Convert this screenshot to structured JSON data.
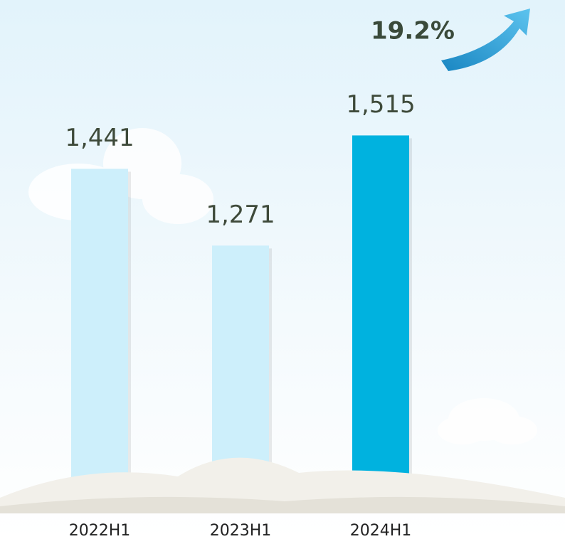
{
  "chart_data": {
    "type": "bar",
    "categories": [
      "2022H1",
      "2023H1",
      "2024H1"
    ],
    "values": [
      1441,
      1271,
      1515
    ],
    "value_labels": [
      "1,441",
      "1,271",
      "1,515"
    ],
    "colors": [
      "#cdeffb",
      "#cdeffb",
      "#00b2df"
    ],
    "ylim": [
      736,
      1815
    ],
    "annotation": "19.2%"
  }
}
